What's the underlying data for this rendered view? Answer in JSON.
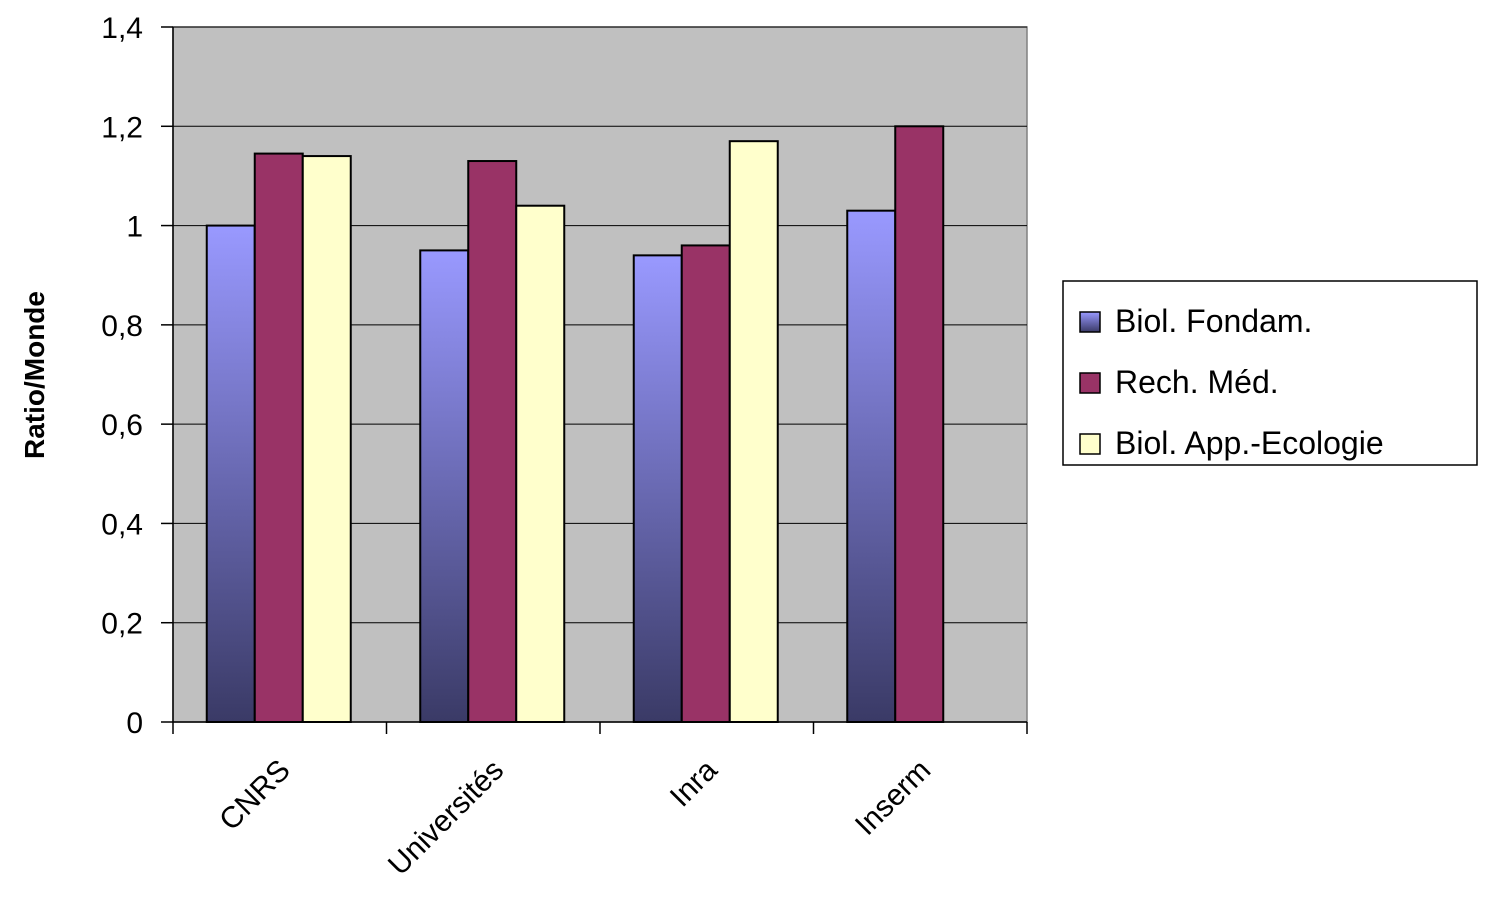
{
  "chart_data": {
    "type": "bar",
    "title": "",
    "xlabel": "",
    "ylabel": "Ratio/Monde",
    "ylim": [
      0,
      1.4
    ],
    "yticks": [
      0,
      0.2,
      0.4,
      0.6,
      0.8,
      1,
      1.2,
      1.4
    ],
    "ytick_labels": [
      "0",
      "0,2",
      "0,4",
      "0,6",
      "0,8",
      "1",
      "1,2",
      "1,4"
    ],
    "categories": [
      "CNRS",
      "Universités",
      "Inra",
      "Inserm"
    ],
    "series": [
      {
        "name": "Biol. Fondam.",
        "values": [
          1.0,
          0.95,
          0.94,
          1.03
        ],
        "color": "#9999ff",
        "gradient_to": "#3a3a66"
      },
      {
        "name": "Rech. Méd.",
        "values": [
          1.145,
          1.13,
          0.96,
          1.2
        ],
        "color": "#993366"
      },
      {
        "name": "Biol. App.-Ecologie",
        "values": [
          1.14,
          1.04,
          1.17,
          null
        ],
        "color": "#ffffcc"
      }
    ],
    "grid": true,
    "plot_background": "#c0c0c0",
    "legend_position": "right"
  }
}
